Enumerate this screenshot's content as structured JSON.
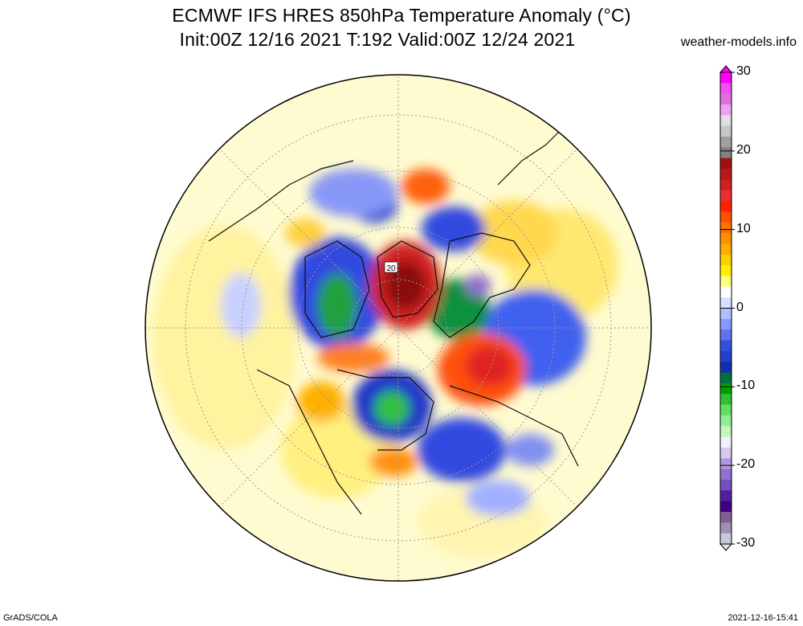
{
  "header": {
    "title": "ECMWF IFS HRES 850hPa Temperature Anomaly (°C)",
    "subtitle": "Init:00Z 12/16 2021 T:192 Valid:00Z 12/24 2021",
    "credit": "weather-models.info"
  },
  "map": {
    "projection": "north-polar-stereographic",
    "contour_label": "20"
  },
  "colorbar": {
    "ticks": [
      "30",
      "20",
      "10",
      "0",
      "-10",
      "-20",
      "-30"
    ],
    "range": [
      -30,
      30
    ],
    "colors_top_to_bottom": [
      "#ff00ff",
      "#f050f0",
      "#e070e0",
      "#f0a0f0",
      "#e0e0e0",
      "#c8c8c8",
      "#a0a0a0",
      "#808080",
      "#a01010",
      "#b81818",
      "#d02020",
      "#e83030",
      "#ff2000",
      "#ff5000",
      "#ff7000",
      "#ff9000",
      "#ffb000",
      "#ffd000",
      "#fff000",
      "#ffff80",
      "#ffffff",
      "#d8e0ff",
      "#b0c0ff",
      "#8898ff",
      "#6070f0",
      "#3050e0",
      "#2040d0",
      "#1030b0",
      "#007040",
      "#00a000",
      "#30c030",
      "#60e060",
      "#90f090",
      "#c0f8c0",
      "#f0f0ff",
      "#d8c8f0",
      "#b098e0",
      "#9070d0",
      "#7050c0",
      "#5020a0",
      "#400080",
      "#806090",
      "#a090b0",
      "#c8c8d8"
    ]
  },
  "footer": {
    "left": "GrADS/COLA",
    "right": "2021-12-16-15:41"
  }
}
